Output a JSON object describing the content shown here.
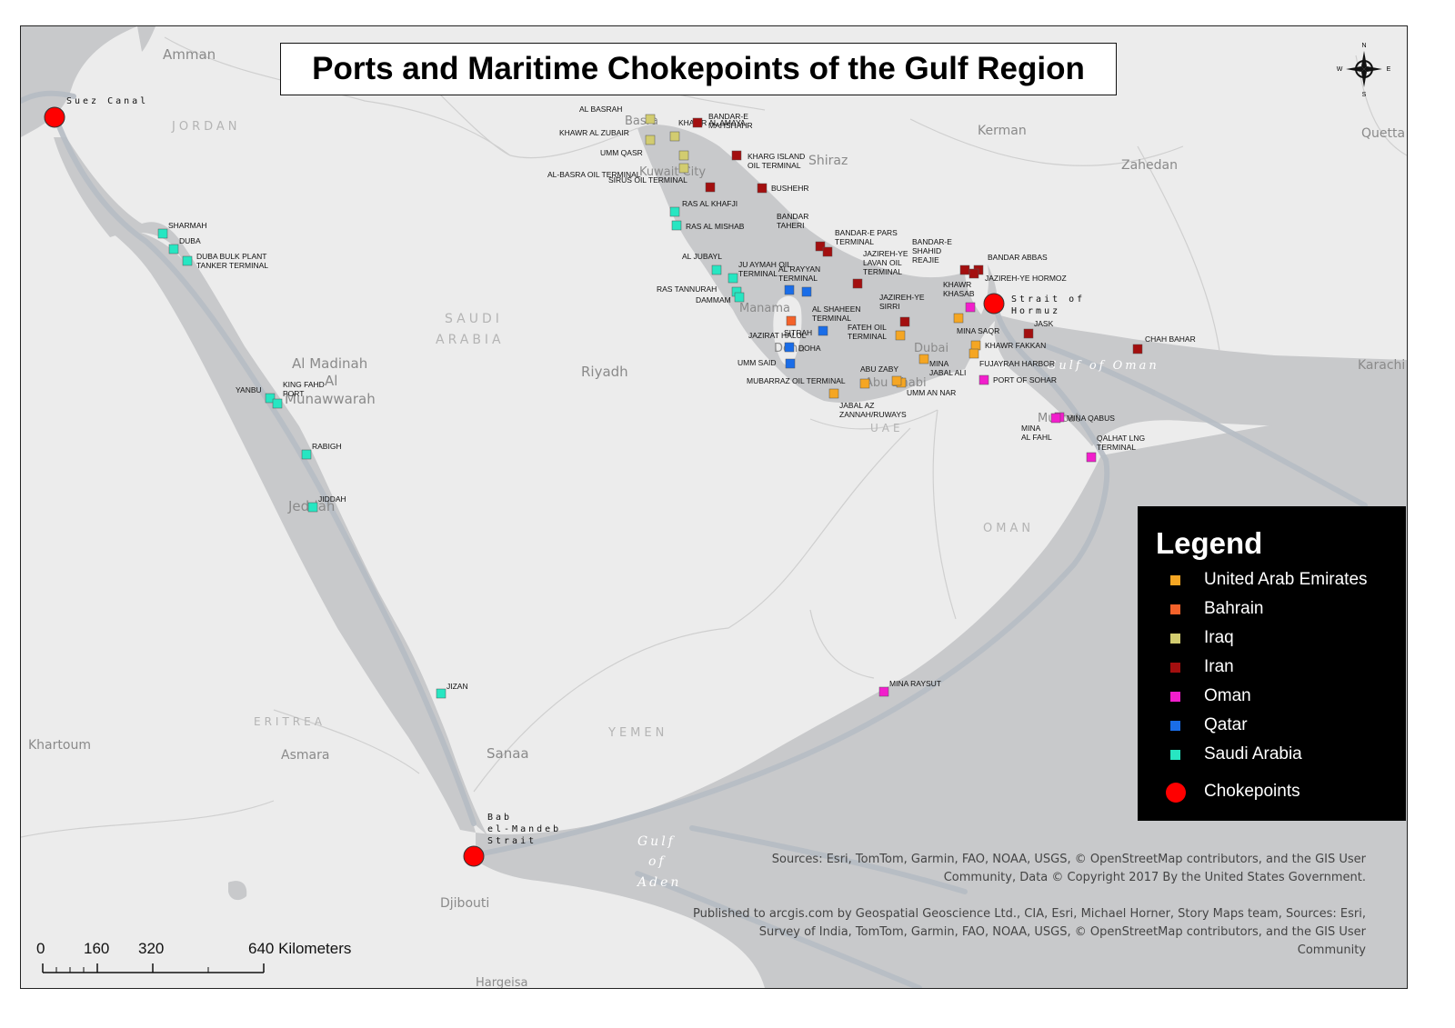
{
  "title": "Ports and Maritime Chokepoints of the Gulf Region",
  "legend": {
    "title": "Legend",
    "items": [
      {
        "label": "United Arab Emirates",
        "color": "#f5a623",
        "shape": "square"
      },
      {
        "label": "Bahrain",
        "color": "#f4622a",
        "shape": "square"
      },
      {
        "label": "Iraq",
        "color": "#d2cc70",
        "shape": "square"
      },
      {
        "label": "Iran",
        "color": "#a30f0f",
        "shape": "square"
      },
      {
        "label": "Oman",
        "color": "#f21ecc",
        "shape": "square"
      },
      {
        "label": "Qatar",
        "color": "#1a6de8",
        "shape": "square"
      },
      {
        "label": "Saudi Arabia",
        "color": "#27e6c2",
        "shape": "square"
      },
      {
        "label": "Chokepoints",
        "color": "#ff0000",
        "shape": "circle"
      }
    ]
  },
  "chokepoints": [
    {
      "name": "Suez Canal",
      "lat": 30.58,
      "lon": 32.35
    },
    {
      "name": "Strait of Hormuz",
      "lat": 26.57,
      "lon": 56.25
    },
    {
      "name": "Bab el-Mandeb Strait",
      "lat": 12.58,
      "lon": 43.33
    }
  ],
  "ports": [
    {
      "name": "AL BASRAH",
      "country": "Iraq",
      "lat": 30.5,
      "lon": 47.81
    },
    {
      "name": "KHAWR AL ZUBAIR",
      "country": "Iraq",
      "lat": 30.18,
      "lon": 47.88
    },
    {
      "name": "UMM QASR",
      "country": "Iraq",
      "lat": 30.03,
      "lon": 47.95
    },
    {
      "name": "AL-BASRA OIL TERMINAL",
      "country": "Iraq",
      "lat": 29.68,
      "lon": 48.8
    },
    {
      "name": "KHAWR AL AMAYA",
      "country": "Iraq",
      "lat": 29.78,
      "lon": 48.8
    },
    {
      "name": "BANDAR-E MAHSHAHR",
      "country": "Iran",
      "lat": 30.47,
      "lon": 49.17
    },
    {
      "name": "KHARG ISLAND OIL TERMINAL",
      "country": "Iran",
      "lat": 29.23,
      "lon": 50.32
    },
    {
      "name": "SIRUS OIL TERMINAL",
      "country": "Iran",
      "lat": 25.9,
      "lon": 54.53
    },
    {
      "name": "BUSHEHR",
      "country": "Iran",
      "lat": 28.97,
      "lon": 50.83
    },
    {
      "name": "BANDAR TAHERI",
      "country": "Iran",
      "lat": 27.66,
      "lon": 52.35
    },
    {
      "name": "BANDAR-E PARS TERMINAL",
      "country": "Iran",
      "lat": 27.48,
      "lon": 52.6
    },
    {
      "name": "JAZIREH-YE LAVAN OIL TERMINAL",
      "country": "Iran",
      "lat": 26.8,
      "lon": 53.36
    },
    {
      "name": "BANDAR-E SHAHID REAJIE",
      "country": "Iran",
      "lat": 27.1,
      "lon": 56.06
    },
    {
      "name": "BANDAR ABBAS",
      "country": "Iran",
      "lat": 27.18,
      "lon": 56.28
    },
    {
      "name": "JAZIREH-YE HORMOZ",
      "country": "Iran",
      "lat": 27.06,
      "lon": 56.46
    },
    {
      "name": "JAZIREH-YE SIRRI",
      "country": "Iran",
      "lat": 25.9,
      "lon": 54.53
    },
    {
      "name": "JASK",
      "country": "Iran",
      "lat": 25.64,
      "lon": 57.77
    },
    {
      "name": "CHAH BAHAR",
      "country": "Iran",
      "lat": 25.29,
      "lon": 60.64
    },
    {
      "name": "KHAWR KHASAB",
      "country": "Oman",
      "lat": 26.2,
      "lon": 56.25
    },
    {
      "name": "MINA SAQR",
      "country": "United Arab Emirates",
      "lat": 25.98,
      "lon": 56.05
    },
    {
      "name": "KHAWR FAKKAN",
      "country": "United Arab Emirates",
      "lat": 25.35,
      "lon": 56.36
    },
    {
      "name": "FUJAYRAH HARBOR",
      "country": "United Arab Emirates",
      "lat": 25.17,
      "lon": 56.36
    },
    {
      "name": "PORT OF SOHAR",
      "country": "Oman",
      "lat": 24.5,
      "lon": 56.62
    },
    {
      "name": "MINA JABAL ALI",
      "country": "United Arab Emirates",
      "lat": 25.01,
      "lon": 55.06
    },
    {
      "name": "UMM AN NAR",
      "country": "United Arab Emirates",
      "lat": 24.44,
      "lon": 54.5
    },
    {
      "name": "ABU ZABY",
      "country": "United Arab Emirates",
      "lat": 24.52,
      "lon": 54.38
    },
    {
      "name": "FATEH OIL TERMINAL",
      "country": "United Arab Emirates",
      "lat": 25.6,
      "lon": 54.4
    },
    {
      "name": "JABAL AZ ZANNAH/RUWAYS",
      "country": "United Arab Emirates",
      "lat": 24.1,
      "lon": 52.7
    },
    {
      "name": "MUBARRAZ OIL TERMINAL",
      "country": "United Arab Emirates",
      "lat": 24.45,
      "lon": 53.4
    },
    {
      "name": "AL SHAHEEN TERMINAL",
      "country": "Qatar",
      "lat": 26.58,
      "lon": 51.93
    },
    {
      "name": "AL RAYYAN TERMINAL",
      "country": "Qatar",
      "lat": 26.65,
      "lon": 52.0
    },
    {
      "name": "JAZIRAT HALUL",
      "country": "Qatar",
      "lat": 25.67,
      "lon": 52.4
    },
    {
      "name": "DOHA",
      "country": "Qatar",
      "lat": 25.29,
      "lon": 51.55
    },
    {
      "name": "UMM SAID",
      "country": "Qatar",
      "lat": 24.9,
      "lon": 51.58
    },
    {
      "name": "SITRAH",
      "country": "Bahrain",
      "lat": 26.15,
      "lon": 50.65
    },
    {
      "name": "RAS AL KHAFJI",
      "country": "Saudi Arabia",
      "lat": 28.42,
      "lon": 48.52
    },
    {
      "name": "RAS AL MISHAB",
      "country": "Saudi Arabia",
      "lat": 28.12,
      "lon": 48.63
    },
    {
      "name": "AL JUBAYL",
      "country": "Saudi Arabia",
      "lat": 27.02,
      "lon": 49.66
    },
    {
      "name": "JU AYMAH OIL TERMINAL",
      "country": "Saudi Arabia",
      "lat": 26.88,
      "lon": 50.0
    },
    {
      "name": "RAS TANNURAH",
      "country": "Saudi Arabia",
      "lat": 26.64,
      "lon": 50.16
    },
    {
      "name": "DAMMAM",
      "country": "Saudi Arabia",
      "lat": 26.5,
      "lon": 50.2
    },
    {
      "name": "SHARMAH",
      "country": "Saudi Arabia",
      "lat": 27.93,
      "lon": 35.27
    },
    {
      "name": "DUBA",
      "country": "Saudi Arabia",
      "lat": 27.35,
      "lon": 35.69
    },
    {
      "name": "DUBA BULK PLANT TANKER TERMINAL",
      "country": "Saudi Arabia",
      "lat": 27.27,
      "lon": 35.9
    },
    {
      "name": "YANBU",
      "country": "Saudi Arabia",
      "lat": 24.09,
      "lon": 38.05
    },
    {
      "name": "KING FAHD PORT",
      "country": "Saudi Arabia",
      "lat": 23.95,
      "lon": 38.22
    },
    {
      "name": "RABIGH",
      "country": "Saudi Arabia",
      "lat": 22.8,
      "lon": 39.03
    },
    {
      "name": "JIDDAH",
      "country": "Saudi Arabia",
      "lat": 21.48,
      "lon": 39.17
    },
    {
      "name": "JIZAN",
      "country": "Saudi Arabia",
      "lat": 16.89,
      "lon": 42.55
    },
    {
      "name": "MINA QABUS",
      "country": "Oman",
      "lat": 23.63,
      "lon": 58.57
    },
    {
      "name": "MINA AL FAHL",
      "country": "Oman",
      "lat": 23.63,
      "lon": 58.5
    },
    {
      "name": "QALHAT LNG TERMINAL",
      "country": "Oman",
      "lat": 22.7,
      "lon": 59.37
    },
    {
      "name": "MINA RAYSUT",
      "country": "Oman",
      "lat": 16.94,
      "lon": 54.0
    }
  ],
  "places": [
    {
      "name": "Amman"
    },
    {
      "name": "JORDAN"
    },
    {
      "name": "SAUDI"
    },
    {
      "name": "ARABIA"
    },
    {
      "name": "Riyadh"
    },
    {
      "name": "Al Madinah"
    },
    {
      "name": "Al"
    },
    {
      "name": "Munawwarah"
    },
    {
      "name": "Jeddah"
    },
    {
      "name": "Kerman"
    },
    {
      "name": "Shiraz"
    },
    {
      "name": "Zahedan"
    },
    {
      "name": "Quetta"
    },
    {
      "name": "Karachi"
    },
    {
      "name": "Basra"
    },
    {
      "name": "Kuwait City"
    },
    {
      "name": "Manama"
    },
    {
      "name": "Doha"
    },
    {
      "name": "Dubai"
    },
    {
      "name": "Abu Dhabi"
    },
    {
      "name": "Muscat"
    },
    {
      "name": "UAE"
    },
    {
      "name": "OMAN"
    },
    {
      "name": "YEMEN"
    },
    {
      "name": "ERITREA"
    },
    {
      "name": "Asmara"
    },
    {
      "name": "Sanaa"
    },
    {
      "name": "Khartoum"
    },
    {
      "name": "Djibouti"
    },
    {
      "name": "Hargeisa"
    }
  ],
  "seas": [
    "Gulf",
    "of",
    "Aden",
    "Gulf of Oman"
  ],
  "sources": "Sources: Esri, TomTom, Garmin, FAO, NOAA, USGS, © OpenStreetMap contributors, and the GIS User Community, Data © Copyright 2017 By the United States Government.",
  "published": "Published to arcgis.com by Geospatial Geoscience Ltd., CIA, Esri, Michael Horner, Story Maps team, Sources: Esri, Survey of India, TomTom, Garmin, FAO, NOAA, USGS, © OpenStreetMap contributors, and the GIS User Community",
  "scale_bar": {
    "unit": "Kilometers",
    "ticks": [
      "0",
      "160",
      "320",
      "640 Kilometers"
    ]
  },
  "compass": {
    "n": "N",
    "s": "S",
    "e": "E",
    "w": "W"
  }
}
